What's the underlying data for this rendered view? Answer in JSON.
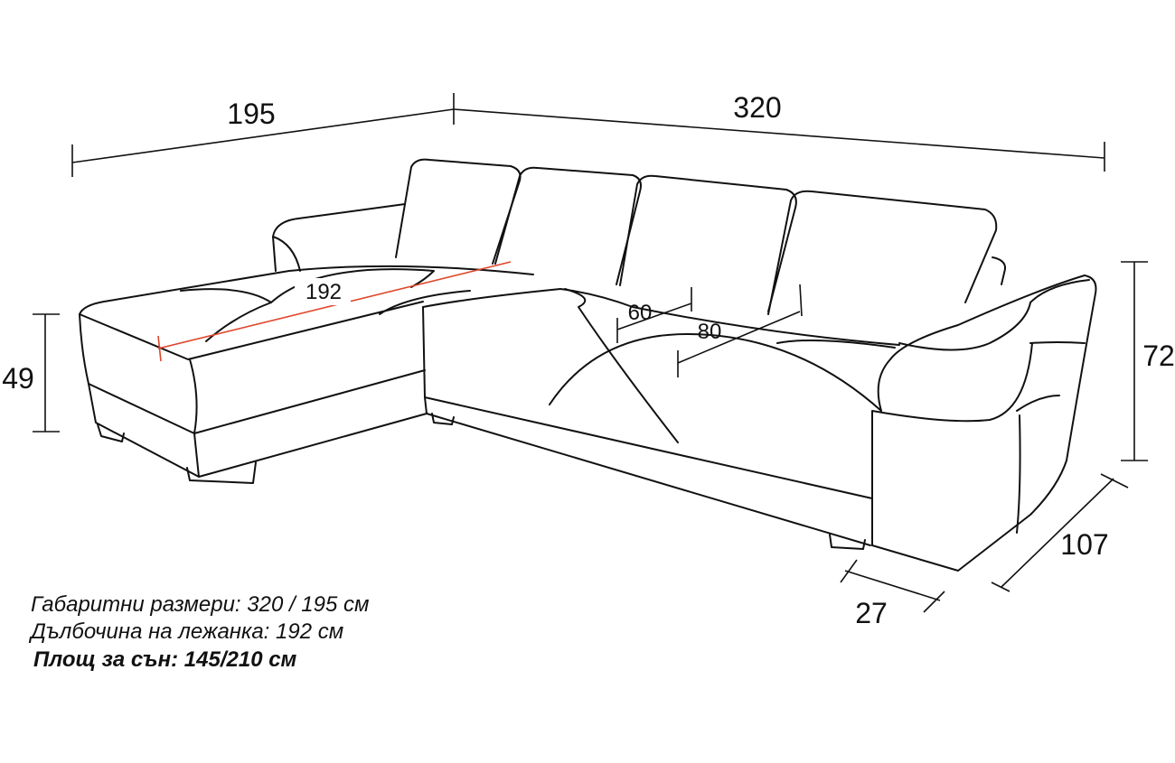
{
  "dimensions": {
    "width_chaise": 195,
    "width_total": 320,
    "chaise_depth": 192,
    "seat_depth": 60,
    "seat_depth_open": 80,
    "seat_height": 49,
    "back_height": 72,
    "depth": 107,
    "armrest_width": 27
  },
  "notes": [
    "Габаритни размери: 320 / 195 см",
    "Дълбочина на лежанка: 192 см",
    "Площ за сън: 145/210 см"
  ]
}
